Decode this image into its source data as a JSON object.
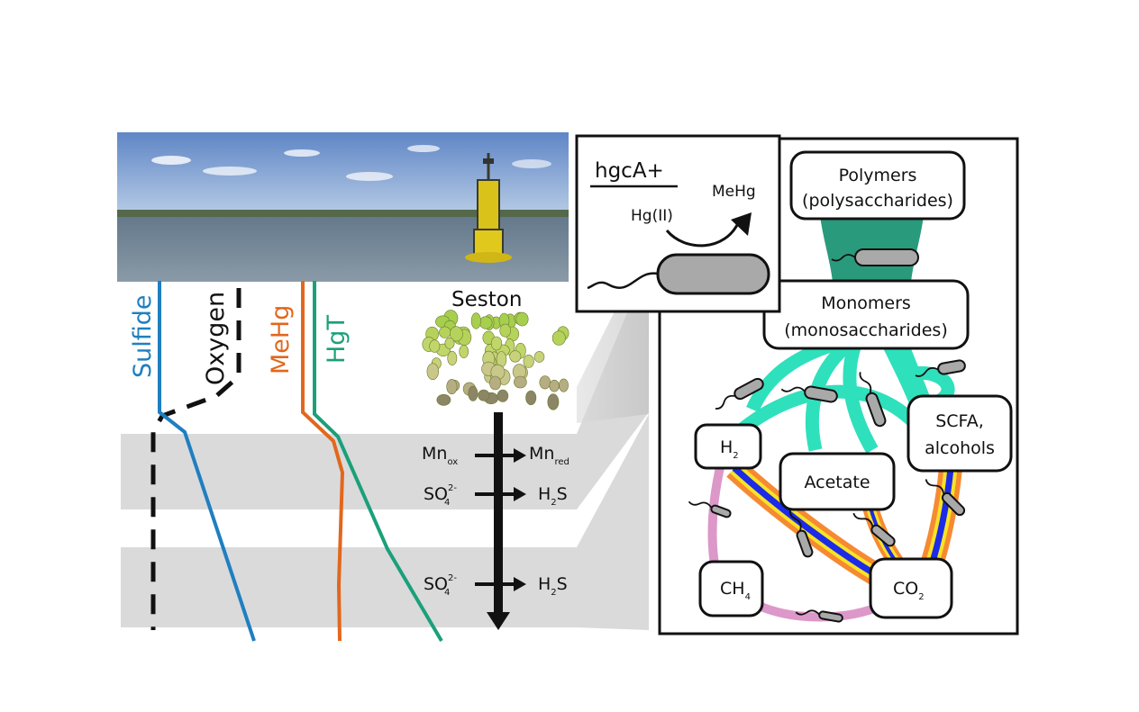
{
  "profile": {
    "labels": {
      "sulfide": "Sulfide",
      "oxygen": "Oxygen",
      "mehg": "MeHg",
      "hgt": "HgT",
      "seston": "Seston"
    },
    "reactions": [
      {
        "from": "Mn",
        "from_sub": "ox",
        "from_sup": "",
        "to": "Mn",
        "to_sub": "red"
      },
      {
        "from": "SO",
        "from_sub": "4",
        "from_sup": "2-",
        "to": "H",
        "to_sub": "2",
        "to_post": "S"
      },
      {
        "from": "SO",
        "from_sub": "4",
        "from_sup": "2-",
        "to": "H",
        "to_sub": "2",
        "to_post": "S"
      }
    ],
    "colors": {
      "sulfide": "#1f7fc0",
      "oxygen": "#111111",
      "mehg": "#e2671c",
      "hgt": "#1aa07a",
      "band": "#dadada"
    }
  },
  "inset": {
    "title": "hgcA+",
    "reactant": "Hg(II)",
    "product": "MeHg"
  },
  "network": {
    "polymers": [
      "Polymers",
      "(polysaccharides)"
    ],
    "monomers": [
      "Monomers",
      "(monosaccharides)"
    ],
    "h2": {
      "main": "H",
      "sub": "2"
    },
    "acetate": "Acetate",
    "scfa": [
      "SCFA,",
      "alcohols"
    ],
    "ch4": {
      "main": "CH",
      "sub": "4"
    },
    "co2": {
      "main": "CO",
      "sub": "2"
    },
    "colors": {
      "dark_teal": "#2a9a7c",
      "teal": "#2fe0bc",
      "pink": "#dc98c8",
      "orange": "#f58a32",
      "yellow": "#f7e326",
      "blue": "#1c2be8",
      "bacterium": "#a9a9a9"
    }
  }
}
